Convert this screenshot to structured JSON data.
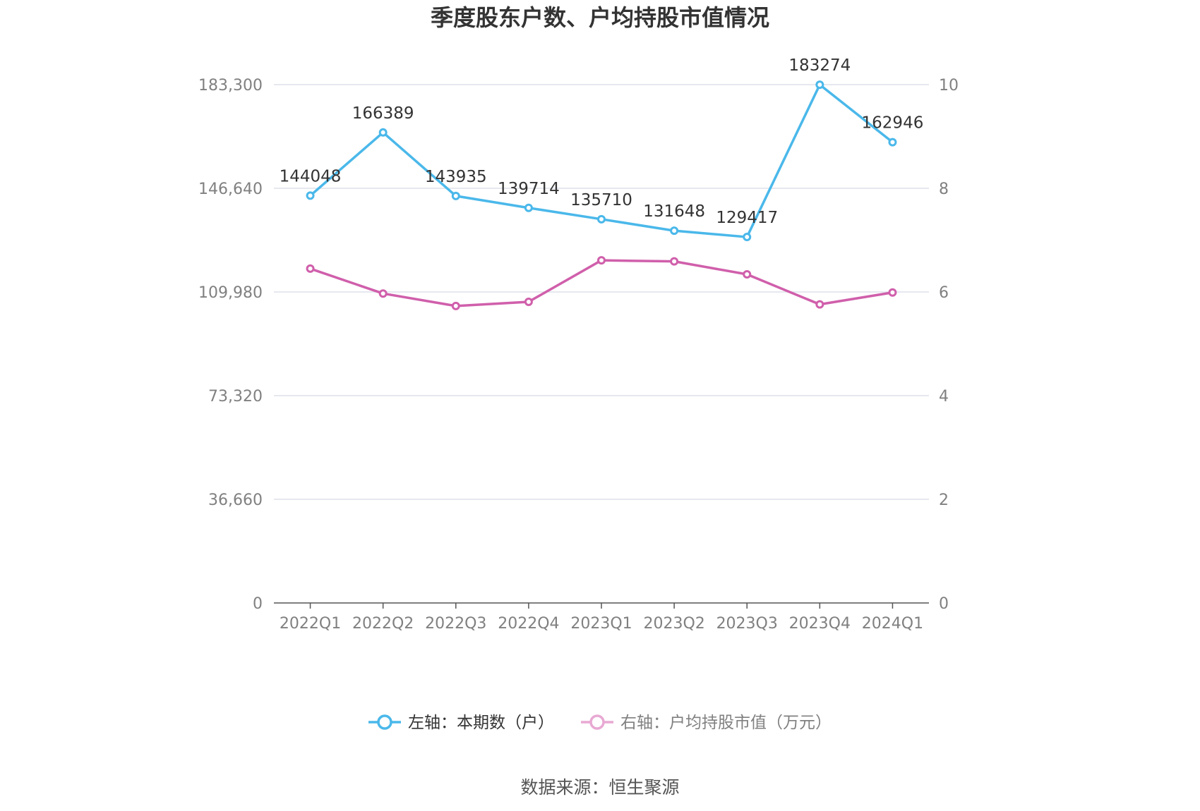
{
  "chart_data": {
    "type": "line",
    "title": "季度股东户数、户均持股市值情况",
    "categories": [
      "2022Q1",
      "2022Q2",
      "2022Q3",
      "2022Q4",
      "2023Q1",
      "2023Q2",
      "2023Q3",
      "2023Q4",
      "2024Q1"
    ],
    "left_axis": {
      "ylim": [
        0,
        183300
      ],
      "ticks": [
        0,
        36660,
        73320,
        109980,
        146640,
        183300
      ],
      "tick_labels": [
        "0",
        "36,660",
        "73,320",
        "109,980",
        "146,640",
        "183,300"
      ]
    },
    "right_axis": {
      "ylim": [
        0,
        10
      ],
      "ticks": [
        0,
        2,
        4,
        6,
        8,
        10
      ],
      "tick_labels": [
        "0",
        "2",
        "4",
        "6",
        "8",
        "10"
      ]
    },
    "series": [
      {
        "name": "左轴：本期数（户）",
        "axis": "left",
        "color": "#4ab8ea",
        "values": [
          144048,
          166389,
          143935,
          139714,
          135710,
          131648,
          129417,
          183274,
          162946
        ],
        "labels": [
          "144048",
          "166389",
          "143935",
          "139714",
          "135710",
          "131648",
          "129417",
          "183274",
          "162946"
        ]
      },
      {
        "name": "右轴：户均持股市值（万元）",
        "axis": "right",
        "color": "#d05fab",
        "legend_color": "#e8a9d3",
        "values": [
          6.45,
          5.97,
          5.73,
          5.81,
          6.61,
          6.59,
          6.34,
          5.76,
          5.99
        ]
      }
    ],
    "grid": true,
    "legend_position": "bottom"
  },
  "source": "数据来源：恒生聚源"
}
